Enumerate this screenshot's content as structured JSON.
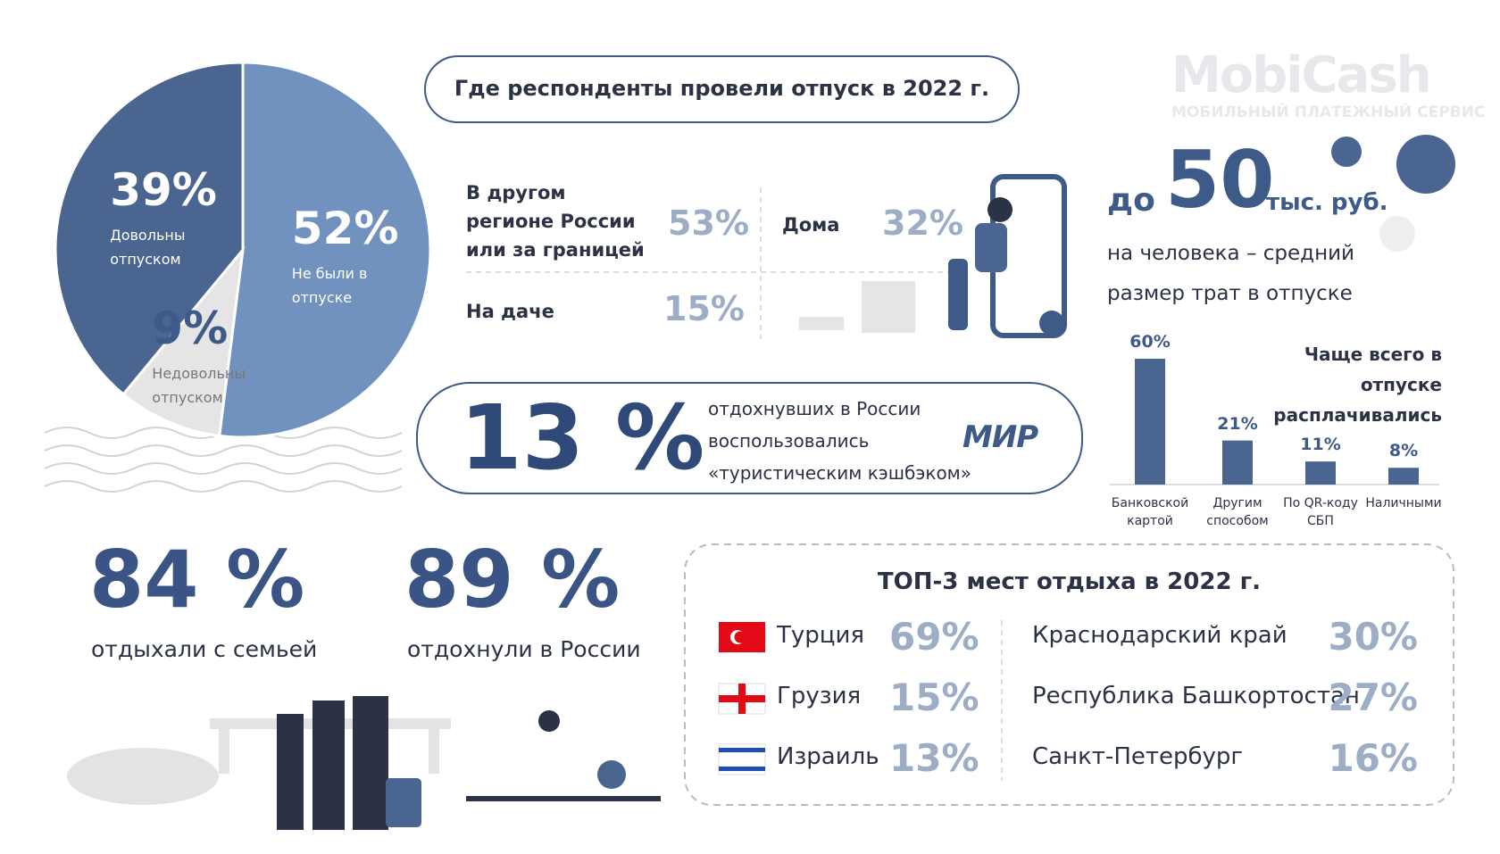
{
  "brand": {
    "name": "MobiCash",
    "tagline": "МОБИЛЬНЫЙ ПЛАТЕЖНЫЙ СЕРВИС"
  },
  "pie": {
    "slices": [
      {
        "value": 52,
        "label": "52%",
        "text": "Не были в отпуске",
        "color": "#7192bf"
      },
      {
        "value": 9,
        "label": "9%",
        "text": "Недовольны отпуском",
        "color": "#e5e5e5"
      },
      {
        "value": 39,
        "label": "39%",
        "text": "Довольны отпуском",
        "color": "#4a6590"
      }
    ]
  },
  "where": {
    "title": "Где респонденты провели отпуск в 2022 г.",
    "items": [
      {
        "label": "В другом регионе России или за границей",
        "value": "53%"
      },
      {
        "label": "Дома",
        "value": "32%"
      },
      {
        "label": "На даче",
        "value": "15%"
      }
    ]
  },
  "spending": {
    "prefix": "до",
    "amount": "50",
    "unit": "тыс. руб.",
    "text": "на человека – средний размер трат в отпуске"
  },
  "cashback": {
    "value": "13 %",
    "text": "отдохнувших в России воспользовались «туристическим кэшбэком»",
    "logo": "МИР"
  },
  "payment": {
    "title": "Чаще всего в отпуске расплачивались",
    "categories": [
      "Банковской картой",
      "Другим способом",
      "По QR-коду СБП",
      "Наличными"
    ],
    "values": [
      60,
      21,
      11,
      8
    ],
    "value_labels": [
      "60%",
      "21%",
      "11%",
      "8%"
    ],
    "color": "#4a6590"
  },
  "family": {
    "value": "84 %",
    "text": "отдыхали с семьей"
  },
  "russia": {
    "value": "89 %",
    "text": "отдохнули в России"
  },
  "top3": {
    "title": "ТОП-3 мест отдыха в 2022 г.",
    "countries": [
      {
        "name": "Турция",
        "value": "69%"
      },
      {
        "name": "Грузия",
        "value": "15%"
      },
      {
        "name": "Израиль",
        "value": "13%"
      }
    ],
    "regions": [
      {
        "name": "Краснодарский край",
        "value": "30%"
      },
      {
        "name": "Республика Башкортостан",
        "value": "27%"
      },
      {
        "name": "Санкт-Петербург",
        "value": "16%"
      }
    ]
  }
}
